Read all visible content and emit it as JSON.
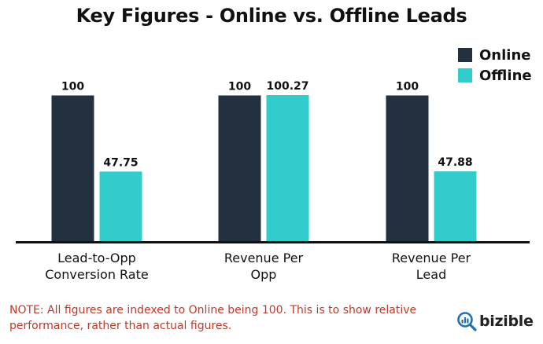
{
  "chart_data": {
    "type": "bar",
    "title": "Key Figures - Online vs. Offline Leads",
    "categories": [
      "Lead-to-Opp\nConversion Rate",
      "Revenue Per\nOpp",
      "Revenue Per\nLead"
    ],
    "series": [
      {
        "name": "Online",
        "color": "#22303f",
        "values": [
          100,
          100,
          100
        ],
        "labels": [
          "100",
          "100",
          "100"
        ]
      },
      {
        "name": "Offline",
        "color": "#33cccc",
        "values": [
          47.75,
          100.27,
          47.88
        ],
        "labels": [
          "47.75",
          "100.27",
          "47.88"
        ]
      }
    ],
    "ylim": [
      0,
      100.27
    ],
    "legend_position": "top-right",
    "grid": false,
    "note": "NOTE: All figures are indexed to Online being 100. This is to show relative performance, rather than actual figures."
  },
  "brand": {
    "name": "bizible",
    "icon": "magnifier-chart-icon"
  }
}
